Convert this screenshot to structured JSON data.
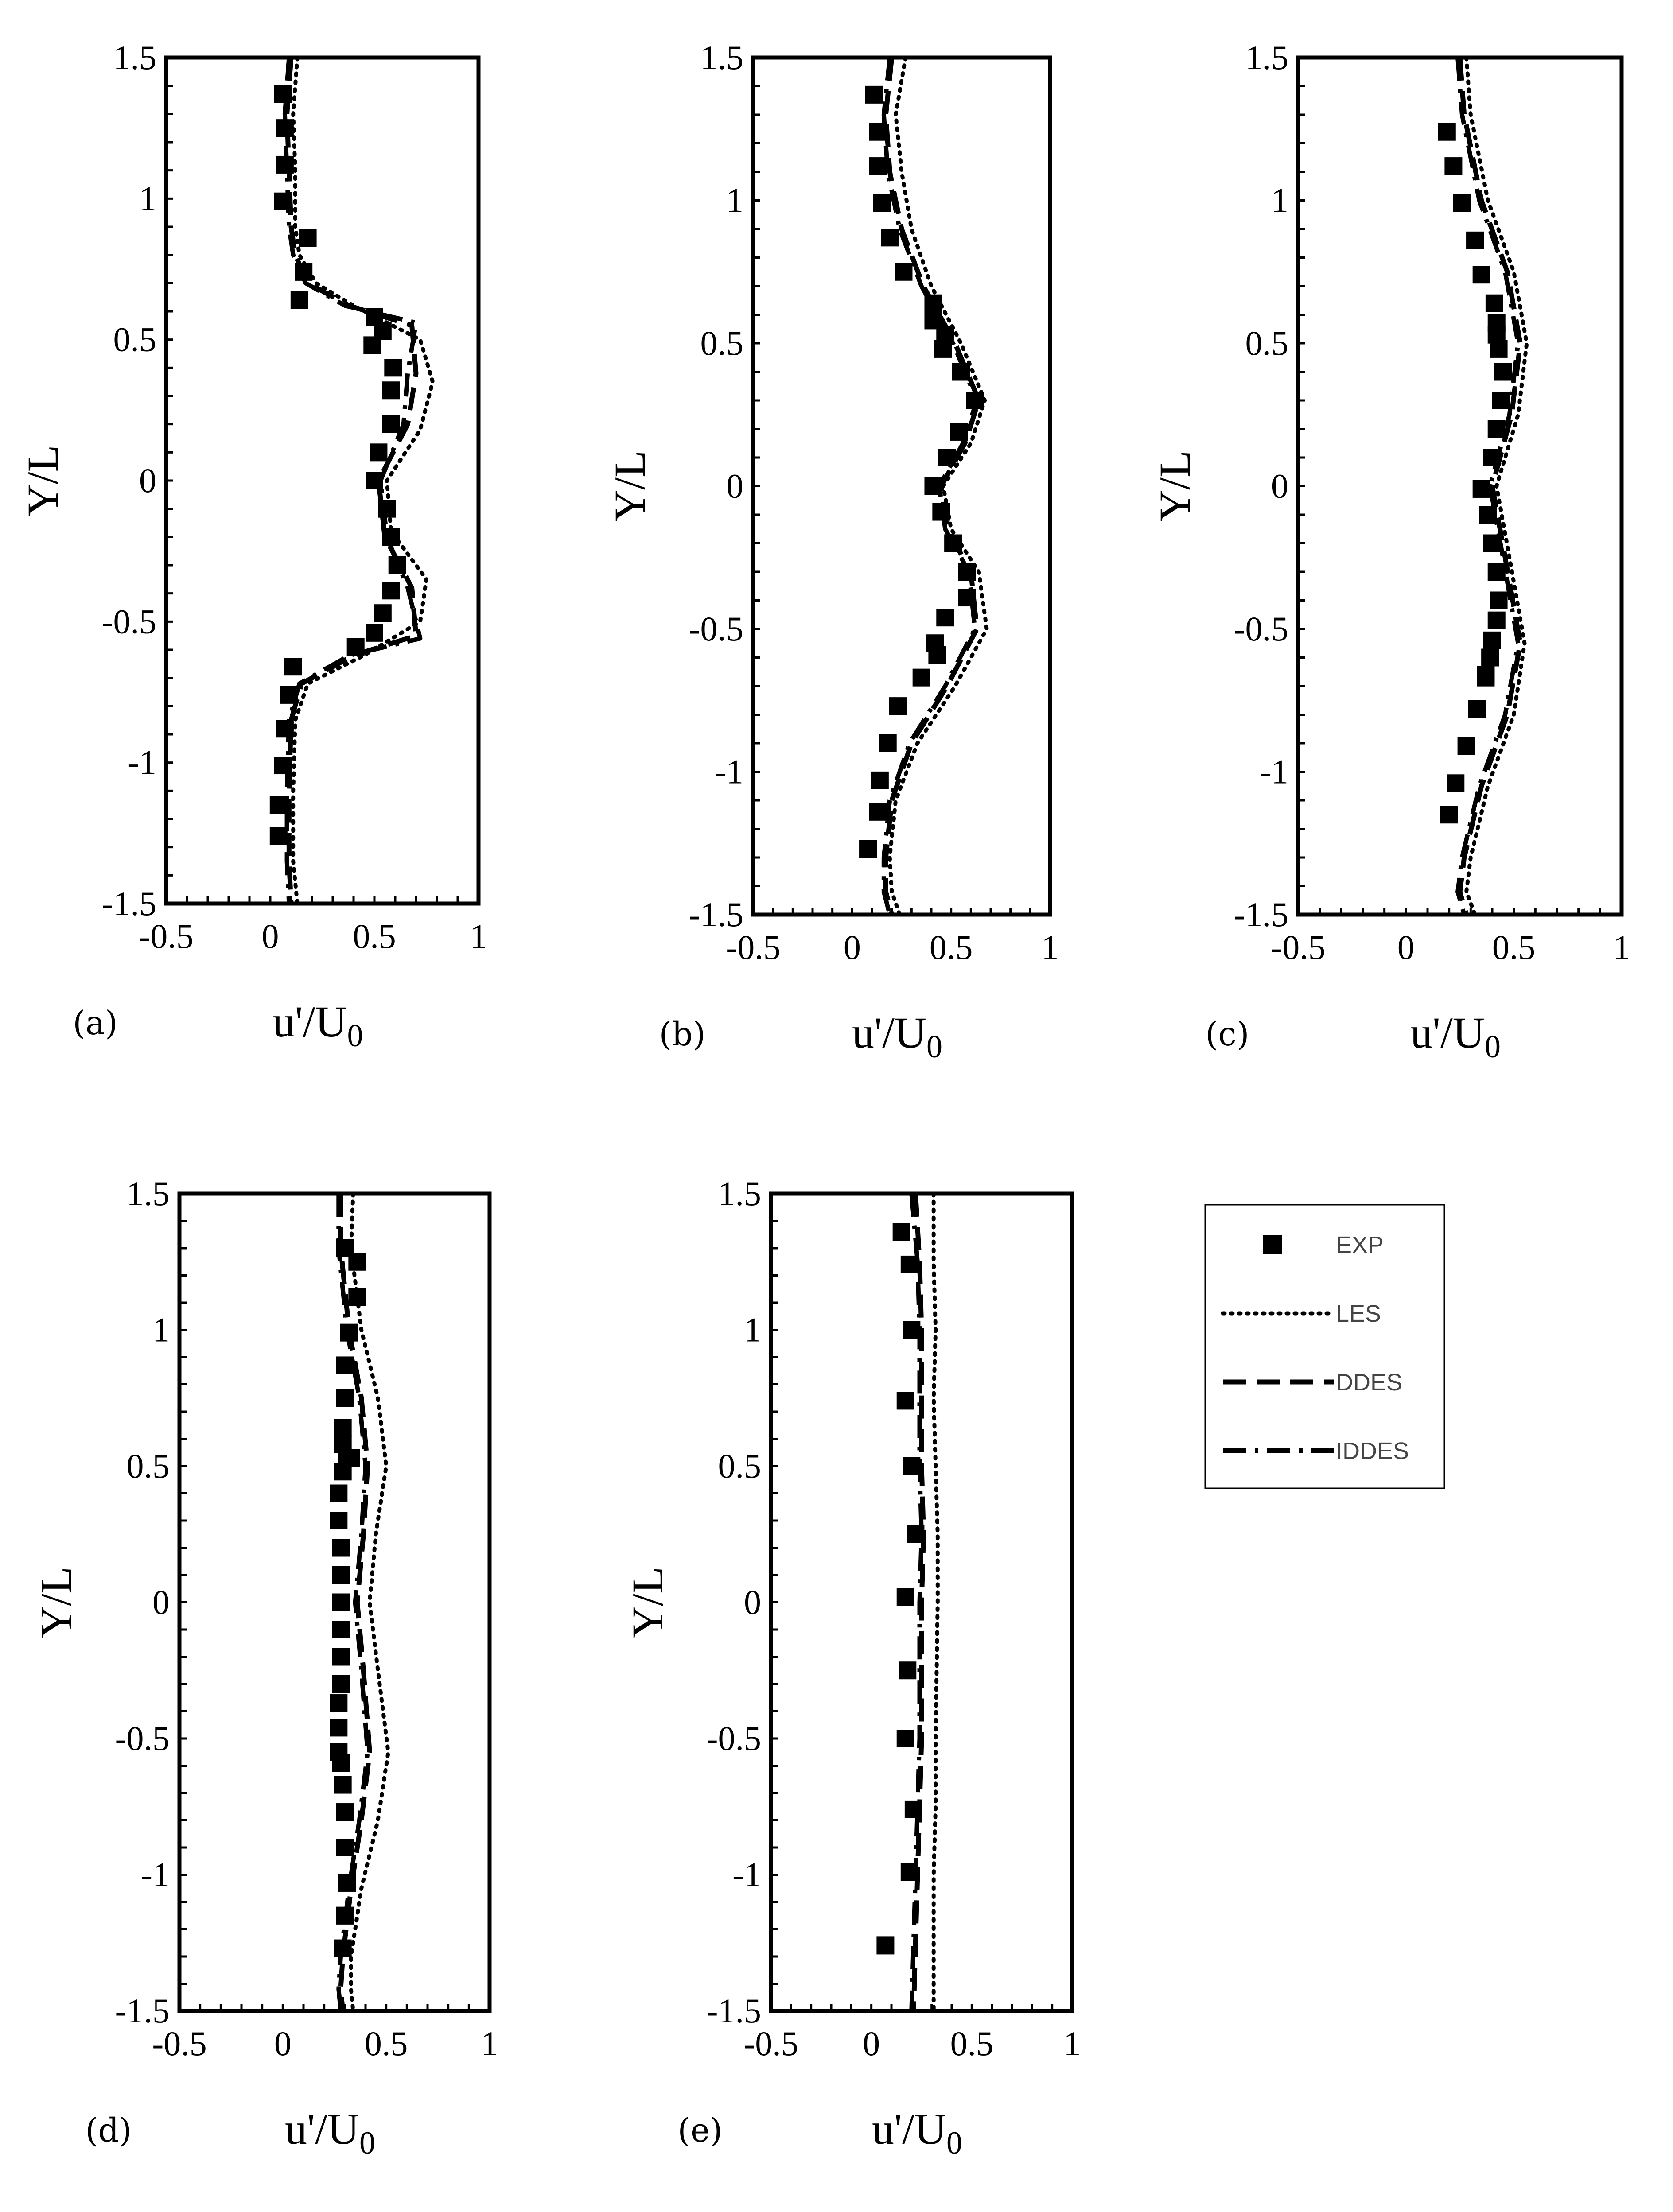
{
  "chart_data": [
    {
      "type": "line",
      "panel_tag": "(a)",
      "xlabel": "u'/U",
      "xlabel_sub": "0",
      "ylabel": "Y/L",
      "xlim": [
        -0.5,
        1
      ],
      "ylim": [
        -1.5,
        1.5
      ],
      "xticks": [
        -0.5,
        0,
        0.5,
        1
      ],
      "xtick_labels": [
        "-0.5",
        "0",
        "0.5",
        "1"
      ],
      "yticks": [
        1.5,
        1,
        0.5,
        0,
        -0.5,
        -1,
        -1.5
      ],
      "ytick_labels": [
        "1.5",
        "1",
        "0.5",
        "0",
        "-0.5",
        "-1",
        "-1.5"
      ],
      "series": [
        {
          "name": "EXP",
          "style": "markers",
          "x": [
            0.06,
            0.07,
            0.07,
            0.06,
            0.18,
            0.16,
            0.14,
            0.5,
            0.54,
            0.49,
            0.59,
            0.58,
            0.58,
            0.52,
            0.5,
            0.56,
            0.58,
            0.61,
            0.58,
            0.54,
            0.5,
            0.41,
            0.11,
            0.09,
            0.07,
            0.06,
            0.04,
            0.04
          ],
          "y": [
            1.37,
            1.25,
            1.12,
            0.99,
            0.86,
            0.74,
            0.64,
            0.58,
            0.53,
            0.48,
            0.4,
            0.32,
            0.2,
            0.1,
            0.0,
            -0.1,
            -0.2,
            -0.3,
            -0.39,
            -0.47,
            -0.54,
            -0.59,
            -0.66,
            -0.76,
            -0.88,
            -1.01,
            -1.15,
            -1.26
          ]
        },
        {
          "name": "LES",
          "style": "dotted",
          "x": [
            0.13,
            0.11,
            0.12,
            0.12,
            0.14,
            0.22,
            0.4,
            0.72,
            0.78,
            0.72,
            0.56,
            0.58,
            0.75,
            0.72,
            0.45,
            0.18,
            0.12,
            0.11,
            0.11,
            0.13
          ],
          "y": [
            1.5,
            1.3,
            1.1,
            0.9,
            0.8,
            0.7,
            0.62,
            0.5,
            0.35,
            0.18,
            0.0,
            -0.18,
            -0.35,
            -0.5,
            -0.62,
            -0.72,
            -0.85,
            -1.1,
            -1.35,
            -1.5
          ]
        },
        {
          "name": "DDES",
          "style": "dashed",
          "x": [
            0.1,
            0.08,
            0.09,
            0.1,
            0.12,
            0.18,
            0.38,
            0.68,
            0.7,
            0.66,
            0.52,
            0.55,
            0.68,
            0.7,
            0.4,
            0.15,
            0.1,
            0.09,
            0.09,
            0.1
          ],
          "y": [
            1.5,
            1.3,
            1.1,
            0.9,
            0.8,
            0.7,
            0.62,
            0.55,
            0.38,
            0.2,
            0.0,
            -0.2,
            -0.38,
            -0.55,
            -0.62,
            -0.72,
            -0.85,
            -1.1,
            -1.35,
            -1.5
          ]
        },
        {
          "name": "IDDES",
          "style": "dashdot",
          "x": [
            0.09,
            0.07,
            0.08,
            0.09,
            0.11,
            0.17,
            0.36,
            0.7,
            0.66,
            0.64,
            0.53,
            0.56,
            0.66,
            0.72,
            0.38,
            0.14,
            0.09,
            0.08,
            0.08,
            0.09
          ],
          "y": [
            1.5,
            1.3,
            1.1,
            0.9,
            0.8,
            0.7,
            0.62,
            0.56,
            0.38,
            0.2,
            0.0,
            -0.2,
            -0.38,
            -0.56,
            -0.62,
            -0.72,
            -0.85,
            -1.1,
            -1.35,
            -1.5
          ]
        }
      ]
    },
    {
      "type": "line",
      "panel_tag": "(b)",
      "xlabel": "u'/U",
      "xlabel_sub": "0",
      "ylabel": "Y/L",
      "xlim": [
        -0.5,
        1
      ],
      "ylim": [
        -1.5,
        1.5
      ],
      "xticks": [
        -0.5,
        0,
        0.5,
        1
      ],
      "xtick_labels": [
        "-0.5",
        "0",
        "0.5",
        "1"
      ],
      "yticks": [
        1.5,
        1,
        0.5,
        0,
        -0.5,
        -1,
        -1.5
      ],
      "ytick_labels": [
        "1.5",
        "1",
        "0.5",
        "0",
        "-0.5",
        "-1",
        "-1.5"
      ],
      "series": [
        {
          "name": "EXP",
          "style": "markers",
          "x": [
            0.11,
            0.13,
            0.13,
            0.15,
            0.19,
            0.26,
            0.41,
            0.41,
            0.47,
            0.46,
            0.55,
            0.62,
            0.54,
            0.48,
            0.41,
            0.45,
            0.51,
            0.58,
            0.58,
            0.47,
            0.42,
            0.43,
            0.35,
            0.23,
            0.18,
            0.14,
            0.13,
            0.08
          ],
          "y": [
            1.37,
            1.24,
            1.12,
            0.99,
            0.87,
            0.75,
            0.64,
            0.58,
            0.53,
            0.48,
            0.4,
            0.3,
            0.19,
            0.1,
            0.0,
            -0.09,
            -0.2,
            -0.3,
            -0.39,
            -0.46,
            -0.55,
            -0.59,
            -0.67,
            -0.77,
            -0.9,
            -1.03,
            -1.14,
            -1.27
          ]
        },
        {
          "name": "LES",
          "style": "dotted",
          "x": [
            0.27,
            0.22,
            0.25,
            0.3,
            0.4,
            0.55,
            0.67,
            0.6,
            0.46,
            0.5,
            0.64,
            0.68,
            0.52,
            0.33,
            0.22,
            0.19,
            0.2,
            0.24
          ],
          "y": [
            1.5,
            1.3,
            1.1,
            0.9,
            0.7,
            0.5,
            0.3,
            0.15,
            0.0,
            -0.15,
            -0.3,
            -0.5,
            -0.7,
            -0.9,
            -1.1,
            -1.3,
            -1.42,
            -1.5
          ]
        },
        {
          "name": "DDES",
          "style": "dashed",
          "x": [
            0.2,
            0.17,
            0.19,
            0.25,
            0.36,
            0.52,
            0.64,
            0.57,
            0.45,
            0.48,
            0.6,
            0.63,
            0.48,
            0.3,
            0.2,
            0.17,
            0.17,
            0.2
          ],
          "y": [
            1.5,
            1.3,
            1.1,
            0.9,
            0.7,
            0.5,
            0.3,
            0.15,
            0.0,
            -0.15,
            -0.3,
            -0.5,
            -0.7,
            -0.9,
            -1.1,
            -1.3,
            -1.42,
            -1.5
          ]
        },
        {
          "name": "IDDES",
          "style": "dashdot",
          "x": [
            0.19,
            0.16,
            0.18,
            0.24,
            0.35,
            0.51,
            0.63,
            0.56,
            0.44,
            0.47,
            0.59,
            0.62,
            0.47,
            0.29,
            0.19,
            0.16,
            0.16,
            0.19
          ],
          "y": [
            1.5,
            1.3,
            1.1,
            0.9,
            0.7,
            0.5,
            0.3,
            0.15,
            0.0,
            -0.15,
            -0.3,
            -0.5,
            -0.7,
            -0.9,
            -1.1,
            -1.3,
            -1.42,
            -1.5
          ]
        }
      ]
    },
    {
      "type": "line",
      "panel_tag": "(c)",
      "xlabel": "u'/U",
      "xlabel_sub": "0",
      "ylabel": "Y/L",
      "xlim": [
        -0.5,
        1
      ],
      "ylim": [
        -1.5,
        1.5
      ],
      "xticks": [
        -0.5,
        0,
        0.5,
        1
      ],
      "xtick_labels": [
        "-0.5",
        "0",
        "0.5",
        "1"
      ],
      "yticks": [
        1.5,
        1,
        0.5,
        0,
        -0.5,
        -1,
        -1.5
      ],
      "ytick_labels": [
        "1.5",
        "1",
        "0.5",
        "0",
        "-0.5",
        "-1",
        "-1.5"
      ],
      "series": [
        {
          "name": "EXP",
          "style": "markers",
          "x": [
            0.19,
            0.22,
            0.26,
            0.32,
            0.35,
            0.41,
            0.42,
            0.42,
            0.43,
            0.45,
            0.44,
            0.42,
            0.4,
            0.35,
            0.38,
            0.4,
            0.42,
            0.43,
            0.42,
            0.4,
            0.39,
            0.37,
            0.37,
            0.33,
            0.28,
            0.23,
            0.2
          ],
          "y": [
            1.24,
            1.12,
            0.99,
            0.86,
            0.74,
            0.64,
            0.57,
            0.53,
            0.48,
            0.4,
            0.3,
            0.2,
            0.1,
            -0.01,
            -0.1,
            -0.2,
            -0.3,
            -0.4,
            -0.47,
            -0.54,
            -0.6,
            -0.66,
            -0.67,
            -0.78,
            -0.91,
            -1.04,
            -1.15
          ]
        },
        {
          "name": "LES",
          "style": "dotted",
          "x": [
            0.28,
            0.3,
            0.38,
            0.5,
            0.56,
            0.52,
            0.42,
            0.48,
            0.55,
            0.5,
            0.38,
            0.3,
            0.28,
            0.32
          ],
          "y": [
            1.5,
            1.3,
            1.0,
            0.75,
            0.5,
            0.25,
            0.0,
            -0.25,
            -0.55,
            -0.8,
            -1.05,
            -1.3,
            -1.42,
            -1.5
          ]
        },
        {
          "name": "DDES",
          "style": "dashed",
          "x": [
            0.25,
            0.27,
            0.35,
            0.47,
            0.53,
            0.49,
            0.4,
            0.46,
            0.53,
            0.47,
            0.35,
            0.27,
            0.25,
            0.28
          ],
          "y": [
            1.5,
            1.3,
            1.0,
            0.75,
            0.5,
            0.25,
            0.0,
            -0.25,
            -0.55,
            -0.8,
            -1.05,
            -1.3,
            -1.42,
            -1.5
          ]
        },
        {
          "name": "IDDES",
          "style": "dashdot",
          "x": [
            0.24,
            0.26,
            0.34,
            0.46,
            0.52,
            0.48,
            0.39,
            0.45,
            0.52,
            0.46,
            0.34,
            0.26,
            0.24,
            0.27
          ],
          "y": [
            1.5,
            1.3,
            1.0,
            0.75,
            0.5,
            0.25,
            0.0,
            -0.25,
            -0.55,
            -0.8,
            -1.05,
            -1.3,
            -1.42,
            -1.5
          ]
        }
      ]
    },
    {
      "type": "line",
      "panel_tag": "(d)",
      "xlabel": "u'/U",
      "xlabel_sub": "0",
      "ylabel": "Y/L",
      "xlim": [
        -0.5,
        1
      ],
      "ylim": [
        -1.5,
        1.5
      ],
      "xticks": [
        -0.5,
        0,
        0.5,
        1
      ],
      "xtick_labels": [
        "-0.5",
        "0",
        "0.5",
        "1"
      ],
      "yticks": [
        1.5,
        1,
        0.5,
        0,
        -0.5,
        -1,
        -1.5
      ],
      "ytick_labels": [
        "1.5",
        "1",
        "0.5",
        "0",
        "-0.5",
        "-1",
        "-1.5"
      ],
      "series": [
        {
          "name": "EXP",
          "style": "markers",
          "x": [
            0.3,
            0.36,
            0.36,
            0.32,
            0.3,
            0.3,
            0.29,
            0.29,
            0.31,
            0.33,
            0.29,
            0.27,
            0.27,
            0.28,
            0.28,
            0.28,
            0.28,
            0.28,
            0.28,
            0.27,
            0.27,
            0.27,
            0.28,
            0.29,
            0.3,
            0.3,
            0.31,
            0.3,
            0.3,
            0.29
          ],
          "y": [
            1.3,
            1.25,
            1.12,
            0.99,
            0.87,
            0.75,
            0.64,
            0.58,
            0.53,
            0.53,
            0.48,
            0.4,
            0.3,
            0.2,
            0.1,
            0.0,
            -0.1,
            -0.2,
            -0.3,
            -0.37,
            -0.46,
            -0.55,
            -0.59,
            -0.67,
            -0.77,
            -0.9,
            -1.03,
            -1.15,
            -1.15,
            -1.27
          ]
        },
        {
          "name": "LES",
          "style": "dotted",
          "x": [
            0.34,
            0.33,
            0.38,
            0.46,
            0.5,
            0.45,
            0.42,
            0.46,
            0.51,
            0.46,
            0.38,
            0.33,
            0.33,
            0.34
          ],
          "y": [
            1.5,
            1.3,
            1.0,
            0.75,
            0.5,
            0.25,
            0.0,
            -0.25,
            -0.55,
            -0.8,
            -1.05,
            -1.3,
            -1.42,
            -1.5
          ]
        },
        {
          "name": "DDES",
          "style": "dashed",
          "x": [
            0.28,
            0.28,
            0.32,
            0.38,
            0.41,
            0.39,
            0.36,
            0.39,
            0.42,
            0.38,
            0.33,
            0.29,
            0.28,
            0.29
          ],
          "y": [
            1.5,
            1.3,
            1.0,
            0.75,
            0.5,
            0.25,
            0.0,
            -0.25,
            -0.55,
            -0.8,
            -1.05,
            -1.3,
            -1.42,
            -1.5
          ]
        },
        {
          "name": "IDDES",
          "style": "dashdot",
          "x": [
            0.27,
            0.27,
            0.31,
            0.37,
            0.4,
            0.38,
            0.35,
            0.38,
            0.41,
            0.37,
            0.32,
            0.28,
            0.27,
            0.28
          ],
          "y": [
            1.5,
            1.3,
            1.0,
            0.75,
            0.5,
            0.25,
            0.0,
            -0.25,
            -0.55,
            -0.8,
            -1.05,
            -1.3,
            -1.42,
            -1.5
          ]
        }
      ]
    },
    {
      "type": "line",
      "panel_tag": "(e)",
      "xlabel": "u'/U",
      "xlabel_sub": "0",
      "ylabel": "Y/L",
      "xlim": [
        -0.5,
        1
      ],
      "ylim": [
        -1.5,
        1.5
      ],
      "xticks": [
        -0.5,
        0,
        0.5,
        1
      ],
      "xtick_labels": [
        "-0.5",
        "0",
        "0.5",
        "1"
      ],
      "yticks": [
        1.5,
        1,
        0.5,
        0,
        -0.5,
        -1,
        -1.5
      ],
      "ytick_labels": [
        "1.5",
        "1",
        "0.5",
        "0",
        "-0.5",
        "-1",
        "-1.5"
      ],
      "series": [
        {
          "name": "EXP",
          "style": "markers",
          "x": [
            0.15,
            0.19,
            0.2,
            0.17,
            0.2,
            0.22,
            0.17,
            0.18,
            0.17,
            0.21,
            0.19,
            0.07
          ],
          "y": [
            1.36,
            1.24,
            1.0,
            0.74,
            0.5,
            0.25,
            0.02,
            -0.25,
            -0.5,
            -0.76,
            -0.99,
            -1.26
          ]
        },
        {
          "name": "LES",
          "style": "dotted",
          "x": [
            0.31,
            0.31,
            0.32,
            0.31,
            0.32,
            0.33,
            0.33,
            0.32,
            0.32,
            0.31,
            0.31,
            0.31
          ],
          "y": [
            1.5,
            1.25,
            1.0,
            0.75,
            0.5,
            0.25,
            0.0,
            -0.5,
            -0.75,
            -1.0,
            -1.25,
            -1.5
          ]
        },
        {
          "name": "DDES",
          "style": "dashed",
          "x": [
            0.22,
            0.24,
            0.25,
            0.25,
            0.25,
            0.26,
            0.25,
            0.25,
            0.24,
            0.23,
            0.22,
            0.21
          ],
          "y": [
            1.5,
            1.25,
            1.0,
            0.75,
            0.5,
            0.25,
            0.0,
            -0.5,
            -0.75,
            -1.0,
            -1.25,
            -1.5
          ]
        },
        {
          "name": "IDDES",
          "style": "dashdot",
          "x": [
            0.2,
            0.23,
            0.24,
            0.24,
            0.24,
            0.25,
            0.24,
            0.24,
            0.23,
            0.22,
            0.21,
            0.2
          ],
          "y": [
            1.5,
            1.25,
            1.0,
            0.75,
            0.5,
            0.25,
            0.0,
            -0.5,
            -0.75,
            -1.0,
            -1.25,
            -1.5
          ]
        }
      ]
    }
  ],
  "legend": {
    "entries": [
      {
        "label": "EXP",
        "style": "markers"
      },
      {
        "label": "LES",
        "style": "dotted"
      },
      {
        "label": "DDES",
        "style": "dashed"
      },
      {
        "label": "IDDES",
        "style": "dashdot"
      }
    ]
  }
}
